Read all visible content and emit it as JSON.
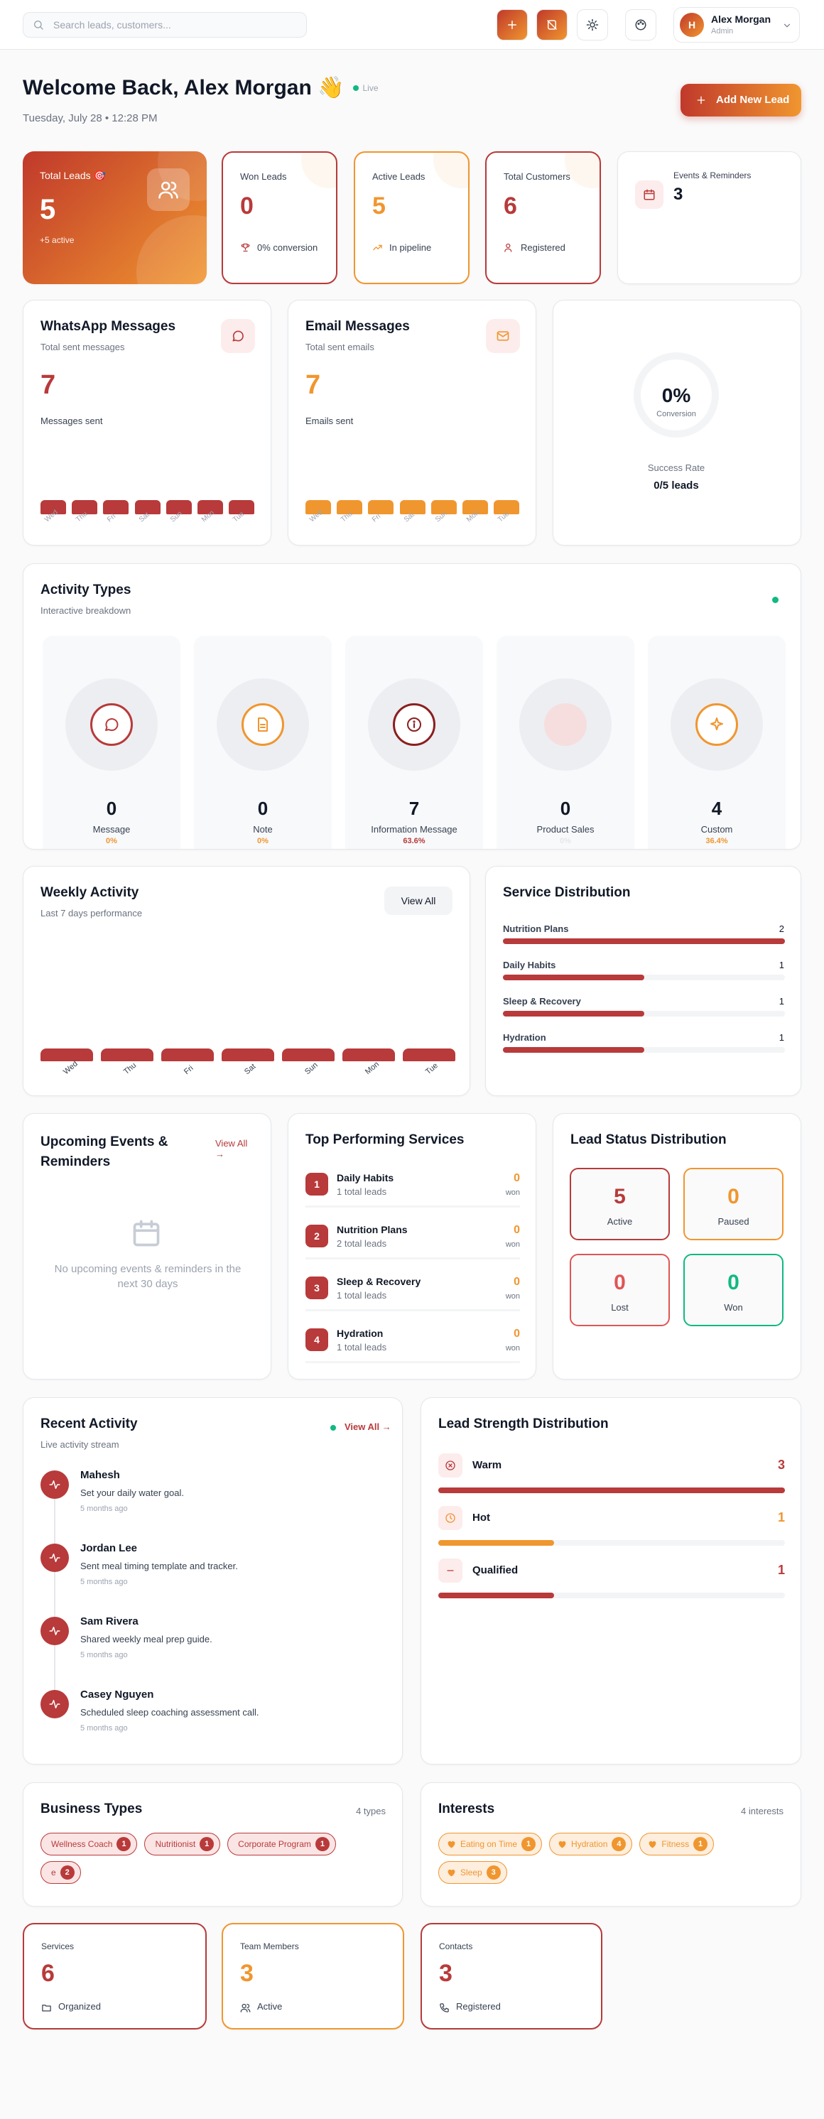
{
  "topbar": {
    "search_placeholder": "Search leads, customers...",
    "user_initial": "H",
    "user_name": "Alex Morgan",
    "user_role": "Admin"
  },
  "header": {
    "title": "Welcome Back, Alex Morgan 👋",
    "live": "Live",
    "date": "Tuesday, July 28 • 12:28 PM",
    "add_button": "Add New Lead"
  },
  "stats": [
    {
      "label": "Total Leads 🎯",
      "value": 5,
      "note": "+5 active"
    },
    {
      "label": "Won Leads",
      "value": 0,
      "note": "0% conversion"
    },
    {
      "label": "Active Leads",
      "value": 5,
      "note": "In pipeline"
    },
    {
      "label": "Total Customers",
      "value": 6,
      "note": "Registered"
    },
    {
      "label": "Events & Reminders",
      "value": 3
    }
  ],
  "days": [
    "Wed",
    "Thu",
    "Fri",
    "Sat",
    "Sun",
    "Mon",
    "Tue"
  ],
  "messages": [
    {
      "title": "WhatsApp Messages",
      "subtitle": "Total sent messages",
      "value": 7,
      "note": "Messages sent"
    },
    {
      "title": "Email Messages",
      "subtitle": "Total sent emails",
      "value": 7,
      "note": "Emails sent"
    }
  ],
  "conversion": {
    "value": "0%",
    "label": "Conversion",
    "rate_label": "Success Rate",
    "rate": "0/5 leads"
  },
  "activity_types": {
    "title": "Activity Types",
    "subtitle": "Interactive breakdown",
    "items": [
      {
        "value": 0,
        "name": "Message",
        "share": "0%"
      },
      {
        "value": 0,
        "name": "Note",
        "share": "0%"
      },
      {
        "value": 7,
        "name": "Information Message",
        "share": "63.6%"
      },
      {
        "value": 0,
        "name": "Product Sales",
        "share": "0%"
      },
      {
        "value": 4,
        "name": "Custom",
        "share": "36.4%"
      }
    ]
  },
  "weekly": {
    "title": "Weekly Activity",
    "subtitle": "Last 7 days performance",
    "button": "View All"
  },
  "services": {
    "title": "Service Distribution",
    "items": [
      {
        "name": "Nutrition Plans",
        "value": 2
      },
      {
        "name": "Daily Habits",
        "value": 1
      },
      {
        "name": "Sleep & Recovery",
        "value": 1
      },
      {
        "name": "Hydration",
        "value": 1
      }
    ]
  },
  "events": {
    "title": "Upcoming Events & Reminders",
    "link": "View All →",
    "empty": "No upcoming events & reminders in the next 30 days"
  },
  "top_services": {
    "title": "Top Performing Services",
    "won_label": "won",
    "items": [
      {
        "rank": 1,
        "name": "Daily Habits",
        "leads": "1 total leads",
        "won": 0
      },
      {
        "rank": 2,
        "name": "Nutrition Plans",
        "leads": "2 total leads",
        "won": 0
      },
      {
        "rank": 3,
        "name": "Sleep & Recovery",
        "leads": "1 total leads",
        "won": 0
      },
      {
        "rank": 4,
        "name": "Hydration",
        "leads": "1 total leads",
        "won": 0
      }
    ]
  },
  "lead_status": {
    "title": "Lead Status Distribution",
    "items": [
      {
        "value": 5,
        "label": "Active"
      },
      {
        "value": 0,
        "label": "Paused"
      },
      {
        "value": 0,
        "label": "Lost"
      },
      {
        "value": 0,
        "label": "Won"
      }
    ]
  },
  "recent": {
    "title": "Recent Activity",
    "subtitle": "Live activity stream",
    "link": "View All →",
    "items": [
      {
        "name": "Mahesh",
        "text": "Set your daily water goal.",
        "time": "5 months ago"
      },
      {
        "name": "Jordan Lee",
        "text": "Sent meal timing template and tracker.",
        "time": "5 months ago"
      },
      {
        "name": "Sam Rivera",
        "text": "Shared weekly meal prep guide.",
        "time": "5 months ago"
      },
      {
        "name": "Casey Nguyen",
        "text": "Scheduled sleep coaching assessment call.",
        "time": "5 months ago"
      }
    ]
  },
  "strength": {
    "title": "Lead Strength Distribution",
    "items": [
      {
        "name": "Warm",
        "value": 3
      },
      {
        "name": "Hot",
        "value": 1
      },
      {
        "name": "Qualified",
        "value": 1
      }
    ]
  },
  "business_types": {
    "title": "Business Types",
    "count": "4 types",
    "items": [
      {
        "name": "Wellness Coach",
        "count": 1
      },
      {
        "name": "Nutritionist",
        "count": 1
      },
      {
        "name": "Corporate Program",
        "count": 1
      },
      {
        "name": "e",
        "count": 2
      }
    ]
  },
  "interests": {
    "title": "Interests",
    "count": "4 interests",
    "items": [
      {
        "name": "Eating on Time",
        "count": 1
      },
      {
        "name": "Hydration",
        "count": 4
      },
      {
        "name": "Fitness",
        "count": 1
      },
      {
        "name": "Sleep",
        "count": 3
      }
    ]
  },
  "bottom": [
    {
      "label": "Services",
      "value": 6,
      "note": "Organized"
    },
    {
      "label": "Team Members",
      "value": 3,
      "note": "Active"
    },
    {
      "label": "Contacts",
      "value": 3,
      "note": "Registered"
    }
  ]
}
